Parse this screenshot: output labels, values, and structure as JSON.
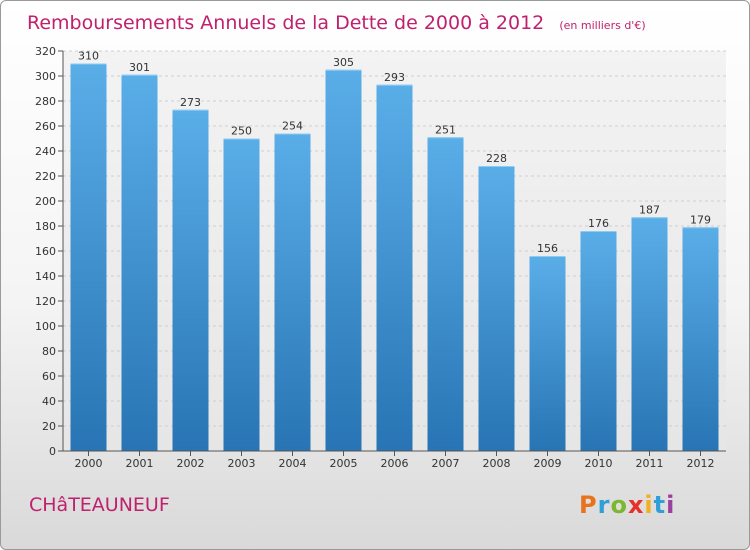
{
  "page": {
    "title": "Remboursements Annuels de la Dette de 2000 à 2012",
    "unit": "(en milliers d'€)",
    "city": "CHâTEAUNEUF",
    "logo": [
      "P",
      "r",
      "o",
      "x",
      "i",
      "t",
      "i"
    ],
    "logo_colors": [
      "#e8731c",
      "#2f9fd8",
      "#7cb82f",
      "#e8302a",
      "#f2b01e",
      "#2f9fd8",
      "#9c3fa0"
    ]
  },
  "chart_data": {
    "type": "bar",
    "title": "Remboursements Annuels de la Dette de 2000 à 2012",
    "subtitle": "(en milliers d'€)",
    "categories": [
      "2000",
      "2001",
      "2002",
      "2003",
      "2004",
      "2005",
      "2006",
      "2007",
      "2008",
      "2009",
      "2010",
      "2011",
      "2012"
    ],
    "values": [
      310,
      301,
      273,
      250,
      254,
      305,
      293,
      251,
      228,
      156,
      176,
      187,
      179
    ],
    "ylim": [
      0,
      320
    ],
    "yticks": [
      0,
      20,
      40,
      60,
      80,
      100,
      120,
      140,
      160,
      180,
      200,
      220,
      240,
      260,
      280,
      300,
      320
    ],
    "grid": true,
    "bar_color_top": "#5aaee8",
    "bar_color_bottom": "#2874b4"
  }
}
